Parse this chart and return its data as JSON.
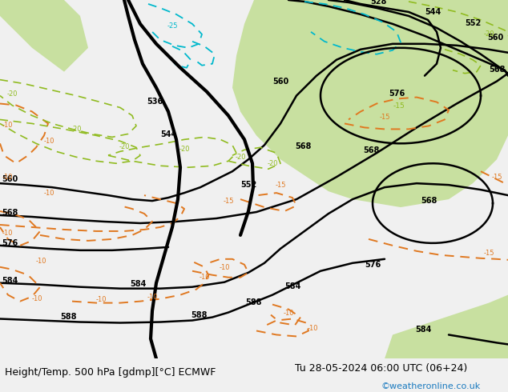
{
  "title_left": "Height/Temp. 500 hPa [gdmp][°C] ECMWF",
  "title_right": "Tu 28-05-2024 06:00 UTC (06+24)",
  "watermark": "©weatheronline.co.uk",
  "bg_color": "#dcdcdc",
  "green_color": "#c8e0a0",
  "fig_width": 6.34,
  "fig_height": 4.9,
  "dpi": 100,
  "title_fontsize": 9,
  "watermark_color": "#1a7abf",
  "black": "#000000",
  "orange": "#e07820",
  "lime": "#90bb20",
  "cyan": "#00b8cc"
}
